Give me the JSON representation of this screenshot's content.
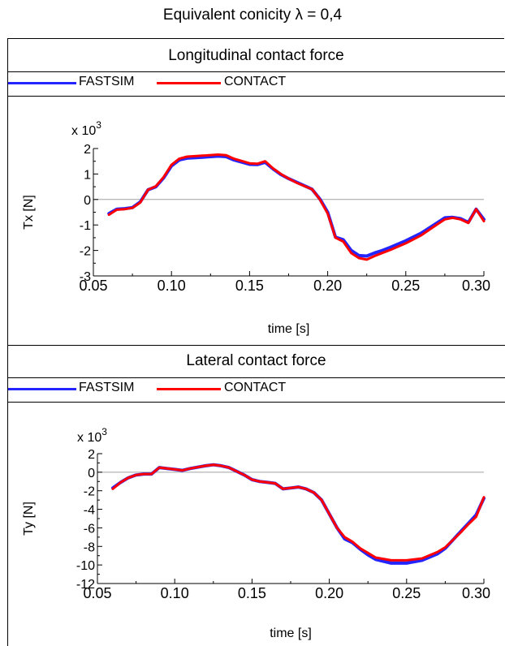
{
  "title": "Equivalent conicity λ = 0,4",
  "colors": {
    "fastsim": "#2424ff",
    "contact": "#ff0000",
    "zero_line": "#a0a0a0"
  },
  "chart_data": [
    {
      "type": "line",
      "title": "Longitudinal contact force",
      "xlabel": "time [s]",
      "ylabel": "Tx [N]",
      "multiplier": "x 10",
      "multiplier_exp": "3",
      "xlim": [
        0.05,
        0.3
      ],
      "ylim": [
        -3,
        2
      ],
      "xticks": [
        "0.05",
        "0.10",
        "0.15",
        "0.20",
        "0.25",
        "0.30"
      ],
      "yticks": [
        "-3",
        "-2",
        "-1",
        "0",
        "1",
        "2"
      ],
      "legend": [
        "FASTSIM",
        "CONTACT"
      ],
      "series": [
        {
          "name": "FASTSIM",
          "color": "#2424ff",
          "x": [
            0.06,
            0.065,
            0.07,
            0.075,
            0.08,
            0.085,
            0.09,
            0.095,
            0.1,
            0.105,
            0.11,
            0.12,
            0.13,
            0.135,
            0.14,
            0.15,
            0.155,
            0.16,
            0.165,
            0.17,
            0.175,
            0.18,
            0.19,
            0.195,
            0.2,
            0.205,
            0.21,
            0.215,
            0.22,
            0.225,
            0.23,
            0.235,
            0.24,
            0.25,
            0.26,
            0.27,
            0.275,
            0.28,
            0.285,
            0.29,
            0.295,
            0.3
          ],
          "y": [
            -0.55,
            -0.38,
            -0.36,
            -0.32,
            -0.1,
            0.38,
            0.5,
            0.85,
            1.32,
            1.55,
            1.62,
            1.66,
            1.7,
            1.68,
            1.55,
            1.38,
            1.37,
            1.46,
            1.2,
            0.98,
            0.82,
            0.68,
            0.4,
            0.02,
            -0.5,
            -1.48,
            -1.58,
            -2.0,
            -2.2,
            -2.22,
            -2.1,
            -2.0,
            -1.88,
            -1.62,
            -1.32,
            -0.92,
            -0.72,
            -0.7,
            -0.75,
            -0.9,
            -0.38,
            -0.78
          ]
        },
        {
          "name": "CONTACT",
          "color": "#ff0000",
          "x": [
            0.06,
            0.065,
            0.07,
            0.075,
            0.08,
            0.085,
            0.09,
            0.095,
            0.1,
            0.105,
            0.11,
            0.12,
            0.13,
            0.135,
            0.14,
            0.15,
            0.155,
            0.16,
            0.165,
            0.17,
            0.175,
            0.18,
            0.19,
            0.195,
            0.2,
            0.205,
            0.21,
            0.215,
            0.22,
            0.225,
            0.23,
            0.235,
            0.24,
            0.25,
            0.26,
            0.27,
            0.275,
            0.28,
            0.285,
            0.29,
            0.295,
            0.3
          ],
          "y": [
            -0.6,
            -0.4,
            -0.38,
            -0.33,
            -0.12,
            0.38,
            0.52,
            0.88,
            1.36,
            1.6,
            1.68,
            1.72,
            1.76,
            1.74,
            1.6,
            1.42,
            1.4,
            1.5,
            1.22,
            1.0,
            0.82,
            0.66,
            0.4,
            0.0,
            -0.55,
            -1.5,
            -1.65,
            -2.1,
            -2.3,
            -2.36,
            -2.22,
            -2.1,
            -1.98,
            -1.72,
            -1.4,
            -0.98,
            -0.78,
            -0.72,
            -0.78,
            -0.92,
            -0.38,
            -0.85
          ]
        }
      ]
    },
    {
      "type": "line",
      "title": "Lateral contact force",
      "xlabel": "time [s]",
      "ylabel": "Ty [N]",
      "multiplier": "x 10",
      "multiplier_exp": "3",
      "xlim": [
        0.05,
        0.3
      ],
      "ylim": [
        -12,
        2
      ],
      "xticks": [
        "0.05",
        "0.10",
        "0.15",
        "0.20",
        "0.25",
        "0.30"
      ],
      "yticks": [
        "-12",
        "-10",
        "-8",
        "-6",
        "-4",
        "-2",
        "0",
        "2"
      ],
      "legend": [
        "FASTSIM",
        "CONTACT"
      ],
      "series": [
        {
          "name": "FASTSIM",
          "color": "#2424ff",
          "x": [
            0.06,
            0.065,
            0.07,
            0.075,
            0.08,
            0.085,
            0.09,
            0.095,
            0.1,
            0.105,
            0.11,
            0.12,
            0.125,
            0.13,
            0.135,
            0.14,
            0.145,
            0.15,
            0.155,
            0.16,
            0.165,
            0.17,
            0.175,
            0.18,
            0.185,
            0.19,
            0.195,
            0.2,
            0.205,
            0.21,
            0.215,
            0.22,
            0.225,
            0.23,
            0.24,
            0.25,
            0.26,
            0.27,
            0.275,
            0.28,
            0.285,
            0.29,
            0.295,
            0.3
          ],
          "y": [
            -1.7,
            -1.1,
            -0.6,
            -0.3,
            -0.2,
            -0.2,
            0.5,
            0.4,
            0.3,
            0.2,
            0.4,
            0.7,
            0.8,
            0.7,
            0.5,
            0.1,
            -0.3,
            -0.8,
            -1.0,
            -1.1,
            -1.2,
            -1.8,
            -1.7,
            -1.6,
            -1.8,
            -2.2,
            -3.0,
            -4.5,
            -6.0,
            -7.2,
            -7.6,
            -8.3,
            -8.9,
            -9.4,
            -9.8,
            -9.8,
            -9.5,
            -8.8,
            -8.2,
            -7.3,
            -6.4,
            -5.5,
            -4.6,
            -2.8
          ]
        },
        {
          "name": "CONTACT",
          "color": "#ff0000",
          "x": [
            0.06,
            0.065,
            0.07,
            0.075,
            0.08,
            0.085,
            0.09,
            0.095,
            0.1,
            0.105,
            0.11,
            0.12,
            0.125,
            0.13,
            0.135,
            0.14,
            0.145,
            0.15,
            0.155,
            0.16,
            0.165,
            0.17,
            0.175,
            0.18,
            0.185,
            0.19,
            0.195,
            0.2,
            0.205,
            0.21,
            0.215,
            0.22,
            0.225,
            0.23,
            0.24,
            0.25,
            0.26,
            0.27,
            0.275,
            0.28,
            0.285,
            0.29,
            0.295,
            0.3
          ],
          "y": [
            -1.8,
            -1.1,
            -0.6,
            -0.3,
            -0.2,
            -0.2,
            0.5,
            0.4,
            0.3,
            0.2,
            0.4,
            0.7,
            0.8,
            0.7,
            0.5,
            0.1,
            -0.3,
            -0.8,
            -1.0,
            -1.1,
            -1.2,
            -1.8,
            -1.7,
            -1.6,
            -1.8,
            -2.2,
            -3.0,
            -4.5,
            -6.0,
            -7.0,
            -7.5,
            -8.2,
            -8.7,
            -9.2,
            -9.5,
            -9.5,
            -9.3,
            -8.6,
            -8.1,
            -7.3,
            -6.5,
            -5.6,
            -4.8,
            -2.7
          ]
        }
      ]
    }
  ]
}
